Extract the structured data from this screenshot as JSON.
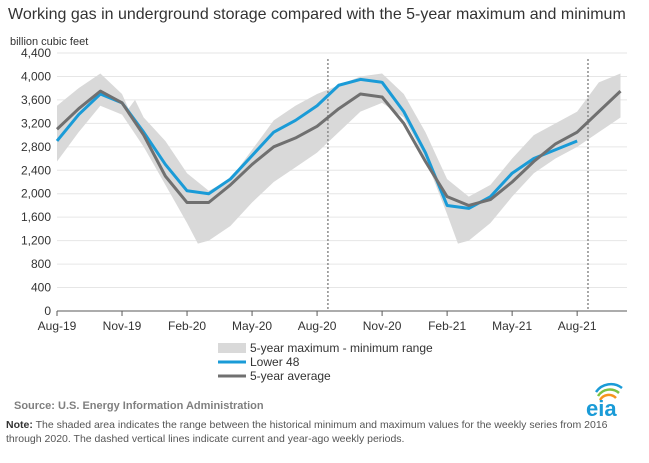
{
  "header": {
    "title": "Working gas in underground  storage compared with the 5-year maximum and minimum",
    "units": "billion cubic feet"
  },
  "footer": {
    "source": "Source:  U.S. Energy Information Administration",
    "note_label": "Note:",
    "note_text": " The shaded area indicates the range between the historical minimum and maximum values for the weekly series from 2016 through 2020. The dashed vertical lines indicate current and year-ago weekly periods.",
    "logo_text": "eia"
  },
  "colors": {
    "lower48": "#1a9bd7",
    "avg": "#707070",
    "range": "#d9d9d9",
    "logo": "#1a9bd7"
  },
  "chart_data": {
    "type": "line",
    "ylim": [
      0,
      4400
    ],
    "yticks": [
      0,
      400,
      800,
      1200,
      1600,
      2000,
      2400,
      2800,
      3200,
      3600,
      4000,
      4400
    ],
    "xlim": [
      0,
      26.3
    ],
    "xticks": [
      {
        "x": 0,
        "label": "Aug-19"
      },
      {
        "x": 3,
        "label": "Nov-19"
      },
      {
        "x": 6,
        "label": "Feb-20"
      },
      {
        "x": 9,
        "label": "May-20"
      },
      {
        "x": 12,
        "label": "Aug-20"
      },
      {
        "x": 15,
        "label": "Nov-20"
      },
      {
        "x": 18,
        "label": "Feb-21"
      },
      {
        "x": 21,
        "label": "May-21"
      },
      {
        "x": 24,
        "label": "Aug-21"
      }
    ],
    "dashed_lines_x": [
      12.5,
      24.5
    ],
    "legend": [
      {
        "key": "range",
        "label": "5-year maximum - minimum range"
      },
      {
        "key": "lower48",
        "label": "Lower 48"
      },
      {
        "key": "avg",
        "label": "5-year average"
      }
    ],
    "range_max": [
      [
        0,
        3500
      ],
      [
        1,
        3800
      ],
      [
        2,
        4050
      ],
      [
        3,
        3700
      ],
      [
        3.3,
        3450
      ],
      [
        3.6,
        3600
      ],
      [
        4,
        3300
      ],
      [
        5,
        2900
      ],
      [
        6,
        2350
      ],
      [
        7,
        2050
      ],
      [
        8,
        2250
      ],
      [
        9,
        2750
      ],
      [
        10,
        3250
      ],
      [
        11,
        3500
      ],
      [
        12,
        3700
      ],
      [
        13,
        3850
      ],
      [
        14,
        4000
      ],
      [
        15,
        4050
      ],
      [
        16,
        3700
      ],
      [
        17,
        3050
      ],
      [
        18,
        2250
      ],
      [
        19,
        1950
      ],
      [
        20,
        2150
      ],
      [
        21,
        2600
      ],
      [
        22,
        3000
      ],
      [
        23,
        3200
      ],
      [
        24,
        3400
      ],
      [
        25,
        3900
      ],
      [
        26,
        4050
      ]
    ],
    "range_min": [
      [
        0,
        2550
      ],
      [
        1,
        3050
      ],
      [
        2,
        3500
      ],
      [
        3,
        3350
      ],
      [
        4,
        2800
      ],
      [
        5,
        2150
      ],
      [
        6,
        1500
      ],
      [
        6.5,
        1150
      ],
      [
        7,
        1200
      ],
      [
        8,
        1450
      ],
      [
        9,
        1850
      ],
      [
        10,
        2200
      ],
      [
        11,
        2450
      ],
      [
        12,
        2700
      ],
      [
        13,
        3050
      ],
      [
        14,
        3400
      ],
      [
        15,
        3550
      ],
      [
        16,
        3300
      ],
      [
        17,
        2600
      ],
      [
        18,
        1650
      ],
      [
        18.5,
        1150
      ],
      [
        19,
        1200
      ],
      [
        20,
        1500
      ],
      [
        21,
        1950
      ],
      [
        22,
        2350
      ],
      [
        23,
        2600
      ],
      [
        24,
        2800
      ],
      [
        25,
        3050
      ],
      [
        26,
        3300
      ]
    ],
    "series": [
      {
        "key": "lower48",
        "points": [
          [
            0,
            2900
          ],
          [
            1,
            3350
          ],
          [
            2,
            3700
          ],
          [
            3,
            3550
          ],
          [
            4,
            3050
          ],
          [
            5,
            2500
          ],
          [
            6,
            2050
          ],
          [
            7,
            2000
          ],
          [
            8,
            2250
          ],
          [
            9,
            2650
          ],
          [
            10,
            3050
          ],
          [
            11,
            3250
          ],
          [
            12,
            3500
          ],
          [
            13,
            3850
          ],
          [
            14,
            3950
          ],
          [
            15,
            3900
          ],
          [
            16,
            3400
          ],
          [
            17,
            2700
          ],
          [
            18,
            1800
          ],
          [
            19,
            1750
          ],
          [
            20,
            1950
          ],
          [
            21,
            2350
          ],
          [
            22,
            2600
          ],
          [
            23,
            2750
          ],
          [
            24,
            2900
          ]
        ]
      },
      {
        "key": "avg",
        "points": [
          [
            0,
            3100
          ],
          [
            1,
            3450
          ],
          [
            2,
            3750
          ],
          [
            3,
            3550
          ],
          [
            4,
            3000
          ],
          [
            5,
            2300
          ],
          [
            6,
            1850
          ],
          [
            7,
            1850
          ],
          [
            8,
            2150
          ],
          [
            9,
            2500
          ],
          [
            10,
            2800
          ],
          [
            11,
            2950
          ],
          [
            12,
            3150
          ],
          [
            13,
            3450
          ],
          [
            14,
            3700
          ],
          [
            15,
            3650
          ],
          [
            16,
            3200
          ],
          [
            17,
            2550
          ],
          [
            18,
            1950
          ],
          [
            19,
            1800
          ],
          [
            20,
            1900
          ],
          [
            21,
            2200
          ],
          [
            22,
            2550
          ],
          [
            23,
            2850
          ],
          [
            24,
            3050
          ],
          [
            25,
            3400
          ],
          [
            26,
            3750
          ]
        ]
      }
    ]
  }
}
